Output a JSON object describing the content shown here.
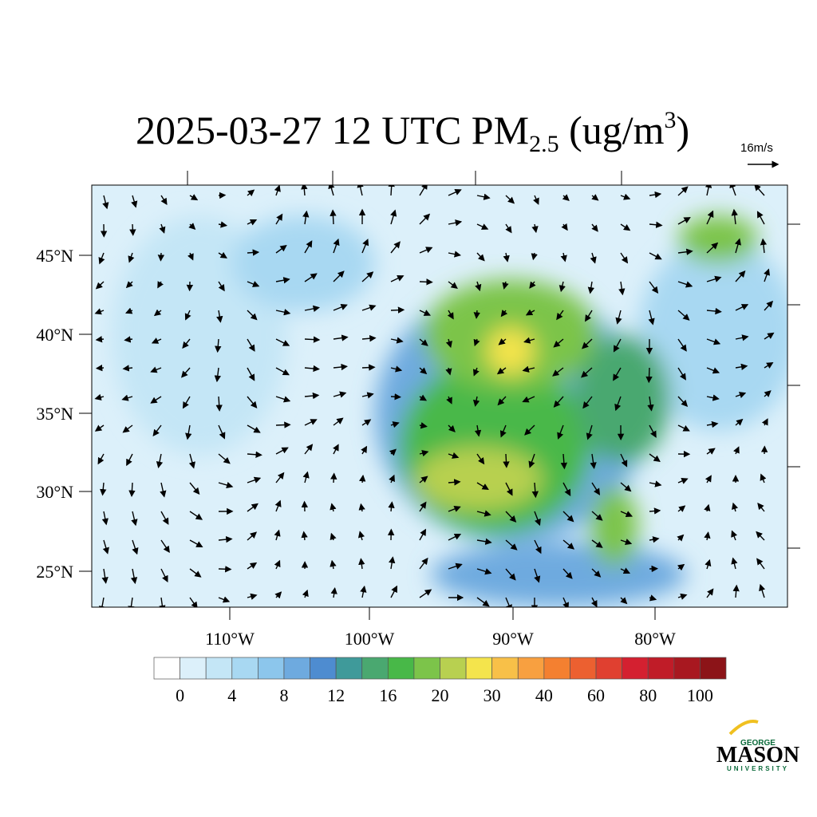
{
  "title": {
    "main": "2025-03-27 12 UTC PM",
    "subscript": "2.5",
    "unit_open": " (ug/m",
    "superscript": "3",
    "unit_close": ")"
  },
  "reference_vector": "16m/s",
  "lat_labels": [
    "45°N",
    "40°N",
    "35°N",
    "30°N",
    "25°N"
  ],
  "lon_labels": [
    "110°W",
    "100°W",
    "90°W",
    "80°W"
  ],
  "colorbar": {
    "colors": [
      "#ffffff",
      "#dcf0fa",
      "#c4e6f6",
      "#a8d8f2",
      "#8cc6ec",
      "#6eaadf",
      "#4e8cd0",
      "#3f9a9a",
      "#4aa870",
      "#48b848",
      "#7cc44a",
      "#b8d050",
      "#f4e44c",
      "#f8c048",
      "#f8a040",
      "#f48030",
      "#ec6030",
      "#e04030",
      "#d42030",
      "#c01c28",
      "#a81820",
      "#8c1418"
    ],
    "ticks": [
      0,
      4,
      8,
      12,
      16,
      20,
      30,
      40,
      60,
      80,
      100
    ]
  },
  "logo": {
    "top": "GEORGE",
    "main": "MASON",
    "bottom": "UNIVERSITY"
  }
}
